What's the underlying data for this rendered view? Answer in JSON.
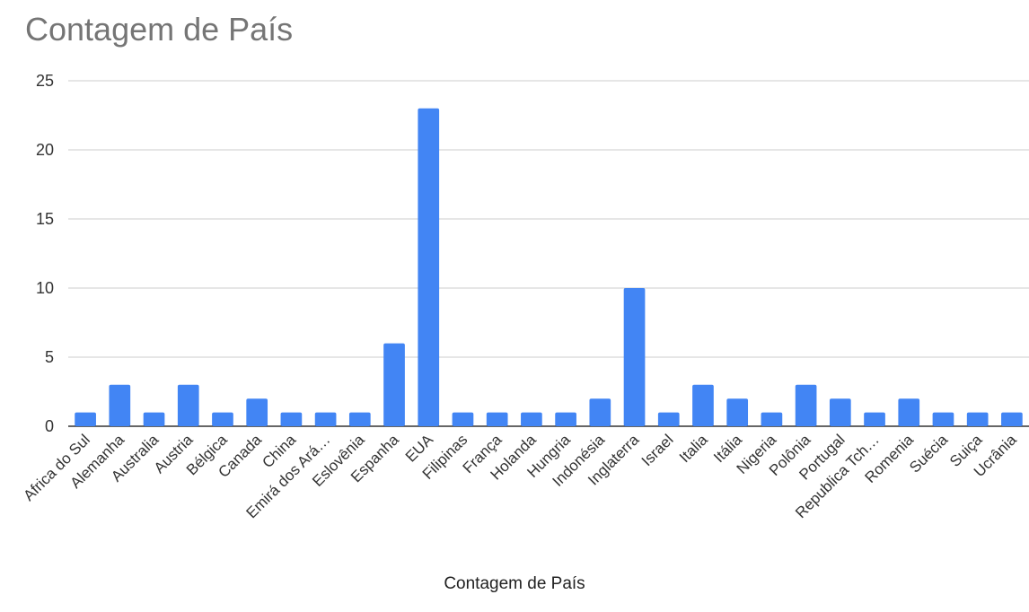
{
  "chart_data": {
    "type": "bar",
    "title": "Contagem de País",
    "xlabel": "Contagem de País",
    "ylabel": "",
    "categories": [
      "Africa do Sul",
      "Alemanha",
      "Australia",
      "Austria",
      "Bélgica",
      "Canada",
      "China",
      "Emirá dos Ará…",
      "Eslovênia",
      "Espanha",
      "EUA",
      "Filipinas",
      "França",
      "Holanda",
      "Hungria",
      "Indonésia",
      "Inglaterra",
      "Israel",
      "Italia",
      "Itália",
      "Nigeria",
      "Polônia",
      "Portugal",
      "Republica Tch…",
      "Romenia",
      "Suécia",
      "Suiça",
      "Ucrânia"
    ],
    "values": [
      1,
      3,
      1,
      3,
      1,
      2,
      1,
      1,
      1,
      6,
      23,
      1,
      1,
      1,
      1,
      2,
      10,
      1,
      3,
      2,
      1,
      3,
      2,
      1,
      2,
      1,
      1,
      1
    ],
    "ylim": [
      0,
      25
    ],
    "yticks": [
      0,
      5,
      10,
      15,
      20,
      25
    ],
    "grid": true,
    "legend": "none",
    "bar_color": "#4285f4",
    "grid_color": "#cccccc",
    "axis_color": "#333333"
  }
}
